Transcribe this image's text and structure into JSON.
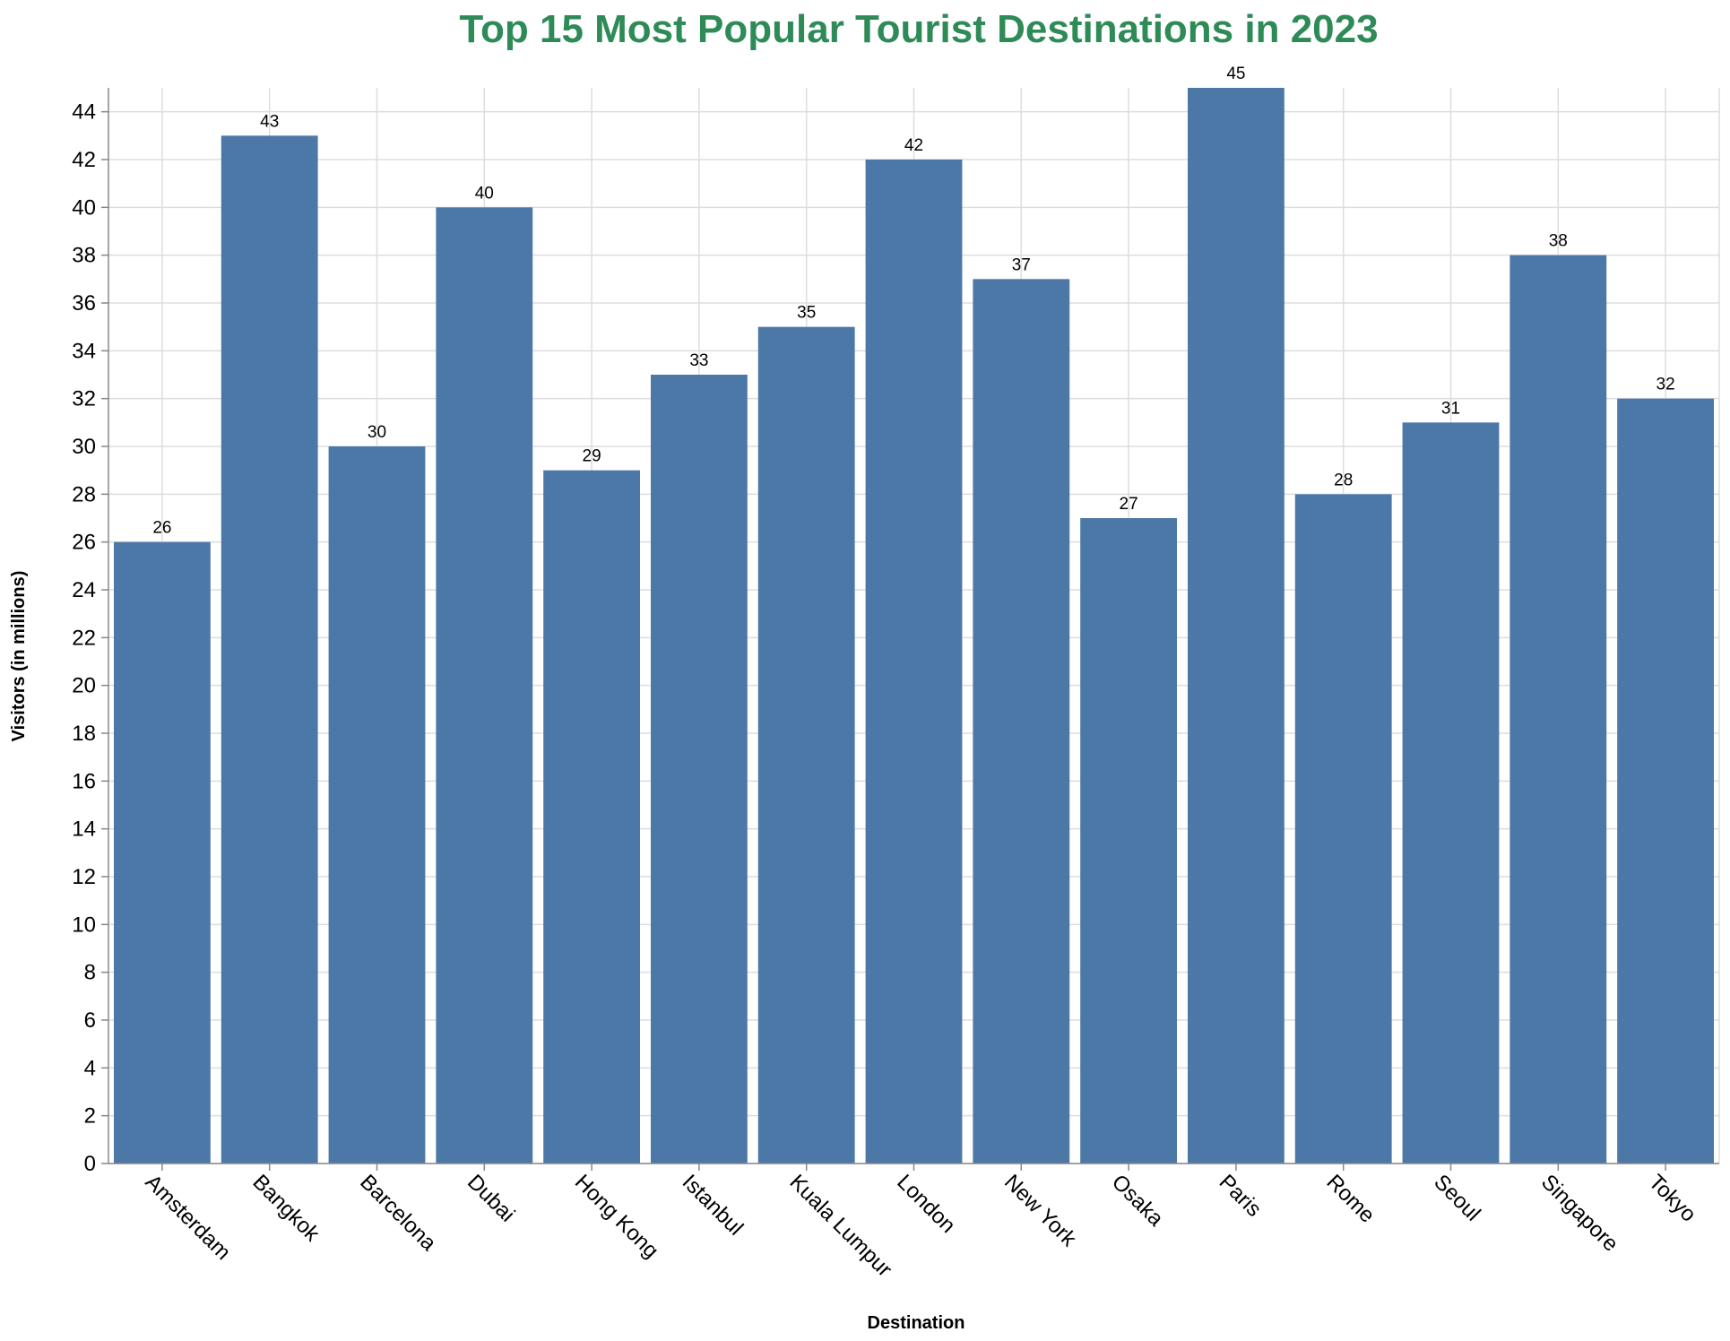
{
  "chart_data": {
    "type": "bar",
    "title": "Top 15 Most Popular Tourist Destinations in 2023",
    "xlabel": "Destination",
    "ylabel": "Visitors (in millions)",
    "categories": [
      "Amsterdam",
      "Bangkok",
      "Barcelona",
      "Dubai",
      "Hong Kong",
      "Istanbul",
      "Kuala Lumpur",
      "London",
      "New York",
      "Osaka",
      "Paris",
      "Rome",
      "Seoul",
      "Singapore",
      "Tokyo"
    ],
    "values": [
      26,
      43,
      30,
      40,
      29,
      33,
      35,
      42,
      37,
      27,
      45,
      28,
      31,
      38,
      32
    ],
    "ylim": [
      0,
      45
    ],
    "ytick_step": 2,
    "grid": true,
    "legend": "none",
    "colors": {
      "bar": "#4c78a8",
      "title": "#2e8b57"
    }
  }
}
